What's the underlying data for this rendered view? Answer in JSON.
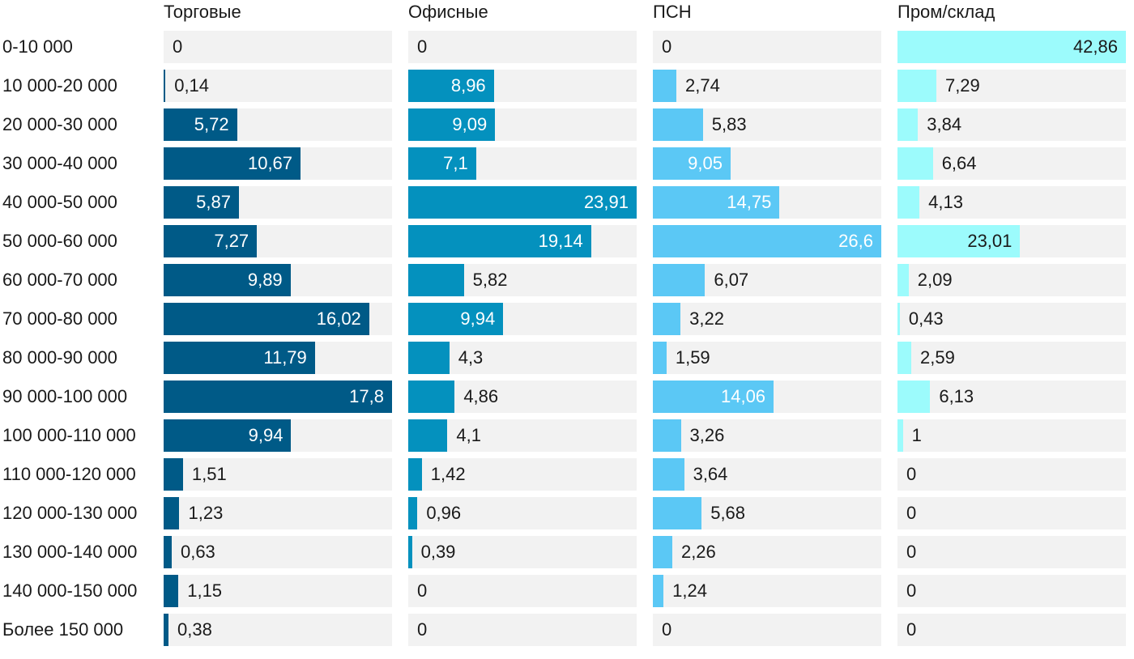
{
  "chart_data": {
    "type": "bar",
    "orientation": "horizontal-small-multiples",
    "categories": [
      "0-10 000",
      "10 000-20 000",
      "20 000-30 000",
      "30 000-40 000",
      "40 000-50 000",
      "50 000-60 000",
      "60 000-70 000",
      "70 000-80 000",
      "80 000-90 000",
      "90 000-100 000",
      "100 000-110 000",
      "110 000-120 000",
      "120 000-130 000",
      "130 000-140 000",
      "140 000-150 000",
      "Более 150 000"
    ],
    "series": [
      {
        "name": "Торговые",
        "color": "#005a87",
        "values": [
          0,
          0.14,
          5.72,
          10.67,
          5.87,
          7.27,
          9.89,
          16.02,
          11.79,
          17.8,
          9.94,
          1.51,
          1.23,
          0.63,
          1.15,
          0.38
        ],
        "labels": [
          "0",
          "0,14",
          "5,72",
          "10,67",
          "5,87",
          "7,27",
          "9,89",
          "16,02",
          "11,79",
          "17,8",
          "9,94",
          "1,51",
          "1,23",
          "0,63",
          "1,15",
          "0,38"
        ]
      },
      {
        "name": "Офисные",
        "color": "#0491be",
        "values": [
          0,
          8.96,
          9.09,
          7.1,
          23.91,
          19.14,
          5.82,
          9.94,
          4.3,
          4.86,
          4.1,
          1.42,
          0.96,
          0.39,
          0,
          0
        ],
        "labels": [
          "0",
          "8,96",
          "9,09",
          "7,1",
          "23,91",
          "19,14",
          "5,82",
          "9,94",
          "4,3",
          "4,86",
          "4,1",
          "1,42",
          "0,96",
          "0,39",
          "0",
          "0"
        ]
      },
      {
        "name": "ПСН",
        "color": "#5bc8f5",
        "values": [
          0,
          2.74,
          5.83,
          9.05,
          14.75,
          26.6,
          6.07,
          3.22,
          1.59,
          14.06,
          3.26,
          3.64,
          5.68,
          2.26,
          1.24,
          0
        ],
        "labels": [
          "0",
          "2,74",
          "5,83",
          "9,05",
          "14,75",
          "26,6",
          "6,07",
          "3,22",
          "1,59",
          "14,06",
          "3,26",
          "3,64",
          "5,68",
          "2,26",
          "1,24",
          "0"
        ]
      },
      {
        "name": "Пром/склад",
        "color": "#9cfbfc",
        "values": [
          42.86,
          7.29,
          3.84,
          6.64,
          4.13,
          23.01,
          2.09,
          0.43,
          2.59,
          6.13,
          1,
          0,
          0,
          0,
          0,
          0
        ],
        "labels": [
          "42,86",
          "7,29",
          "3,84",
          "6,64",
          "4,13",
          "23,01",
          "2,09",
          "0,43",
          "2,59",
          "6,13",
          "1",
          "0",
          "0",
          "0",
          "0",
          "0"
        ]
      }
    ],
    "label_color_dark": "#1a1a1a",
    "label_color_light": "#ffffff",
    "track_color": "#f2f2f2"
  }
}
